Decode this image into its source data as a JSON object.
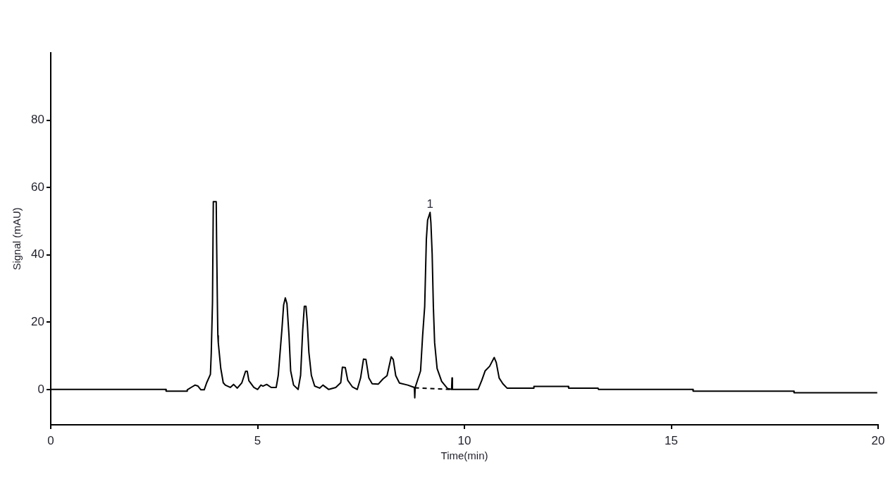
{
  "chart_data": {
    "type": "line",
    "xlabel": "Time(min)",
    "ylabel": "Signal (mAU)",
    "xlim": [
      0,
      20
    ],
    "xticks": [
      0,
      5,
      10,
      15,
      20
    ],
    "ylim": [
      -10.5,
      100
    ],
    "yticks": [
      0,
      20,
      40,
      60,
      80
    ],
    "series": [
      {
        "color": "#000000",
        "x": [
          0,
          2.78,
          2.79,
          3.29,
          3.3,
          3.42,
          3.49,
          3.56,
          3.63,
          3.71,
          3.77,
          3.86,
          3.88,
          3.91,
          3.93,
          4.0,
          4.01,
          4.03,
          4.04,
          4.05,
          4.11,
          4.17,
          4.22,
          4.34,
          4.42,
          4.51,
          4.62,
          4.71,
          4.75,
          4.79,
          4.91,
          5.0,
          5.08,
          5.13,
          5.22,
          5.33,
          5.45,
          5.5,
          5.59,
          5.63,
          5.67,
          5.71,
          5.76,
          5.8,
          5.87,
          5.98,
          6.04,
          6.09,
          6.13,
          6.17,
          6.2,
          6.24,
          6.3,
          6.38,
          6.5,
          6.58,
          6.72,
          6.89,
          7.01,
          7.05,
          7.12,
          7.18,
          7.29,
          7.41,
          7.49,
          7.56,
          7.62,
          7.69,
          7.77,
          7.92,
          8.03,
          8.13,
          8.23,
          8.28,
          8.34,
          8.43,
          8.63,
          8.79,
          8.8,
          8.81,
          8.94,
          8.99,
          9.04,
          9.08,
          9.11,
          9.17,
          9.19,
          9.22,
          9.25,
          9.28,
          9.34,
          9.45,
          9.59,
          9.69,
          9.7,
          9.71,
          10.33,
          10.42,
          10.5,
          10.61,
          10.72,
          10.77,
          10.84,
          10.93,
          11.03,
          11.67,
          11.68,
          12.51,
          12.52,
          13.23,
          13.24,
          15.52,
          15.53,
          17.96,
          17.97,
          19.98
        ],
        "values": [
          0,
          0,
          -0.5,
          -0.5,
          -0.1,
          0.8,
          1.3,
          1.0,
          -0.1,
          -0.1,
          2.0,
          4.5,
          10.7,
          25.8,
          55.8,
          55.8,
          43.6,
          24,
          16,
          13.9,
          6.3,
          2.0,
          1.3,
          0.6,
          1.5,
          0.4,
          2.0,
          5.4,
          5.4,
          2.6,
          0.6,
          0,
          1.3,
          1.0,
          1.5,
          0.6,
          0.6,
          4.2,
          18.1,
          25.1,
          27.2,
          25.5,
          16.0,
          5.5,
          1.3,
          0,
          4.2,
          17.4,
          24.7,
          24.7,
          20.2,
          11.1,
          4.2,
          1.0,
          0.4,
          1.3,
          0,
          0.6,
          2.0,
          6.6,
          6.5,
          2.7,
          0.8,
          0,
          3.4,
          9.0,
          8.9,
          3.4,
          1.7,
          1.6,
          3.1,
          4.1,
          9.7,
          8.9,
          4.1,
          1.9,
          1.3,
          0.6,
          -2.5,
          0.6,
          5.5,
          16,
          24.7,
          44.6,
          50.3,
          52.6,
          49.5,
          40.4,
          24.4,
          13.9,
          6.2,
          2.4,
          0.3,
          0,
          3.4,
          0,
          0,
          2.7,
          5.5,
          6.9,
          9.5,
          8.0,
          3.4,
          1.7,
          0.4,
          0.4,
          0.9,
          0.9,
          0.4,
          0.4,
          0,
          0,
          -0.5,
          -0.5,
          -1.0,
          -1.0
        ]
      },
      {
        "color": "#000000",
        "line_style": "dashed",
        "x": [
          8.8,
          9.7
        ],
        "values": [
          0.5,
          0
        ]
      }
    ],
    "annotations": [
      {
        "text": "1",
        "x": 9.17,
        "y": 52.6
      }
    ]
  }
}
